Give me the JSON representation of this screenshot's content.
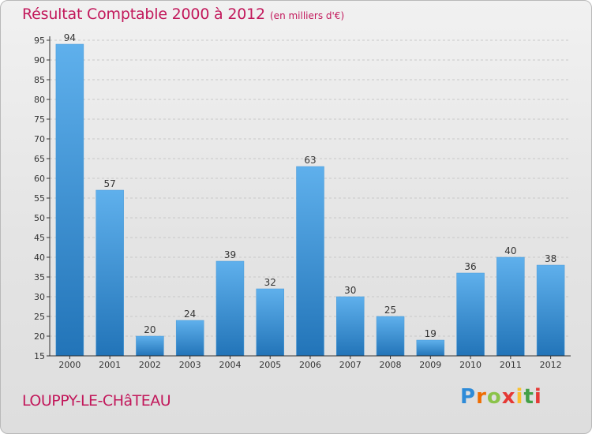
{
  "header": {
    "title": "Résultat Comptable 2000 à 2012",
    "subtitle": "(en milliers d'€)"
  },
  "footer": {
    "commune": "LOUPPY-LE-CHâTEAU",
    "logo_letters": [
      "P",
      "r",
      "o",
      "x",
      "i",
      "t",
      "i"
    ],
    "logo_colors": [
      "#2e8bd8",
      "#ef6c00",
      "#8bc34a",
      "#e53935",
      "#fbc02d",
      "#43a047",
      "#e53935"
    ]
  },
  "colors": {
    "title": "#c2185b",
    "bar_top": "#5fb0ec",
    "bar_bottom": "#2274b8",
    "grid": "#c8c8c8",
    "axis": "#333333"
  },
  "chart_data": {
    "type": "bar",
    "title": "Résultat Comptable 2000 à 2012",
    "subtitle": "(en milliers d'€)",
    "categories": [
      "2000",
      "2001",
      "2002",
      "2003",
      "2004",
      "2005",
      "2006",
      "2007",
      "2008",
      "2009",
      "2010",
      "2011",
      "2012"
    ],
    "values": [
      94,
      57,
      20,
      24,
      39,
      32,
      63,
      30,
      25,
      19,
      36,
      40,
      38
    ],
    "xlabel": "",
    "ylabel": "",
    "ylim": [
      15,
      95
    ],
    "yticks": [
      15,
      20,
      25,
      30,
      35,
      40,
      45,
      50,
      55,
      60,
      65,
      70,
      75,
      80,
      85,
      90,
      95
    ],
    "grid": true,
    "legend": "none"
  }
}
